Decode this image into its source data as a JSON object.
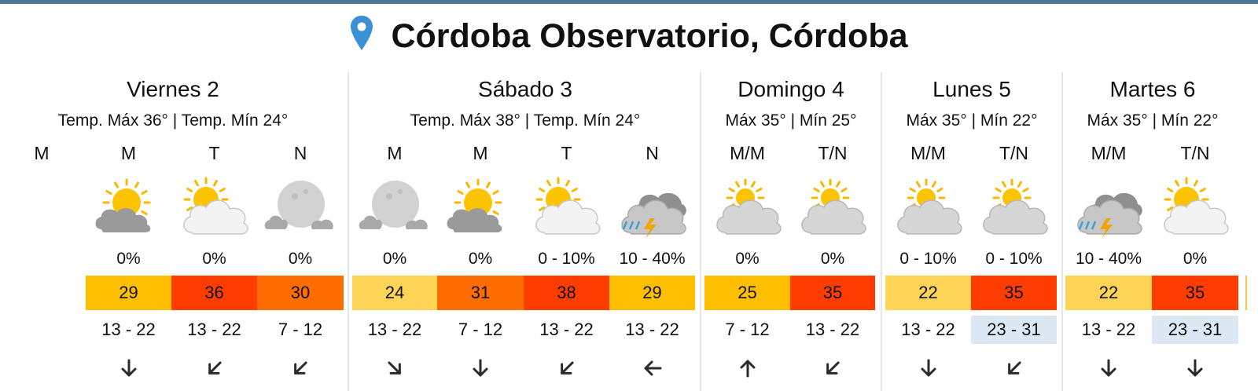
{
  "location": {
    "title": "Córdoba Observatorio, Córdoba",
    "icon": "location-pin-icon"
  },
  "colors": {
    "pin": "#3b8fd4",
    "heat_low": "#fed457",
    "heat_mid": "#fdbf00",
    "heat_orange": "#ff6d00",
    "heat_high": "#ff3d00",
    "wind_highlight": "#dce9f5"
  },
  "days": [
    {
      "name": "Viernes 2",
      "temps": "Temp. Máx 36° | Temp. Mín 24°",
      "periods": [
        {
          "label": "M",
          "partial": true
        },
        {
          "label": "M",
          "icon": "sun-cloud-icon",
          "precip": "0%",
          "temp": "29",
          "heat": "heat_mid",
          "wind": "13 - 22",
          "wind_dir": "down-arrow-icon"
        },
        {
          "label": "T",
          "icon": "partly-cloudy-icon",
          "precip": "0%",
          "temp": "36",
          "heat": "heat_high",
          "wind": "13 - 22",
          "wind_dir": "down-left-arrow-icon"
        },
        {
          "label": "N",
          "icon": "moon-cloud-icon",
          "precip": "0%",
          "temp": "30",
          "heat": "heat_orange",
          "wind": "7 - 12",
          "wind_dir": "down-left-arrow-icon"
        }
      ]
    },
    {
      "name": "Sábado 3",
      "temps": "Temp. Máx 38° | Temp. Mín 24°",
      "periods": [
        {
          "label": "M",
          "icon": "moon-cloud-icon",
          "precip": "0%",
          "temp": "24",
          "heat": "heat_low",
          "wind": "13 - 22",
          "wind_dir": "down-right-arrow-icon"
        },
        {
          "label": "M",
          "icon": "sun-cloud-icon",
          "precip": "0%",
          "temp": "31",
          "heat": "heat_orange",
          "wind": "7 - 12",
          "wind_dir": "down-arrow-icon"
        },
        {
          "label": "T",
          "icon": "partly-cloudy-icon",
          "precip": "0 - 10%",
          "temp": "38",
          "heat": "heat_high",
          "wind": "13 - 22",
          "wind_dir": "down-left-arrow-icon"
        },
        {
          "label": "N",
          "icon": "thunderstorm-icon",
          "precip": "10 - 40%",
          "temp": "29",
          "heat": "heat_mid",
          "wind": "13 - 22",
          "wind_dir": "left-arrow-icon"
        }
      ]
    },
    {
      "name": "Domingo 4",
      "temps": "Máx 35° | Mín 25°",
      "periods": [
        {
          "label": "M/M",
          "icon": "cloudy-sun-icon",
          "precip": "0%",
          "temp": "25",
          "heat": "heat_mid",
          "wind": "7 - 12",
          "wind_dir": "up-arrow-icon"
        },
        {
          "label": "T/N",
          "icon": "cloudy-sun-icon",
          "precip": "0%",
          "temp": "35",
          "heat": "heat_high",
          "wind": "13 - 22",
          "wind_dir": "down-left-arrow-icon"
        }
      ]
    },
    {
      "name": "Lunes 5",
      "temps": "Máx 35° | Mín 22°",
      "periods": [
        {
          "label": "M/M",
          "icon": "cloudy-sun-icon",
          "precip": "0 - 10%",
          "temp": "22",
          "heat": "heat_low",
          "wind": "13 - 22",
          "wind_dir": "down-arrow-icon"
        },
        {
          "label": "T/N",
          "icon": "cloudy-sun-icon",
          "precip": "0 - 10%",
          "temp": "35",
          "heat": "heat_high",
          "wind": "23 - 31",
          "wind_dir": "down-left-arrow-icon",
          "wind_highlight": true
        }
      ]
    },
    {
      "name": "Martes 6",
      "temps": "Máx 35° | Mín 22°",
      "periods": [
        {
          "label": "M/M",
          "icon": "thunderstorm-icon",
          "precip": "10 - 40%",
          "temp": "22",
          "heat": "heat_low",
          "wind": "13 - 22",
          "wind_dir": "down-arrow-icon"
        },
        {
          "label": "T/N",
          "icon": "partly-cloudy-icon",
          "precip": "0%",
          "temp": "35",
          "heat": "heat_high",
          "wind": "23 - 31",
          "wind_dir": "down-arrow-icon",
          "wind_highlight": true
        }
      ]
    }
  ]
}
